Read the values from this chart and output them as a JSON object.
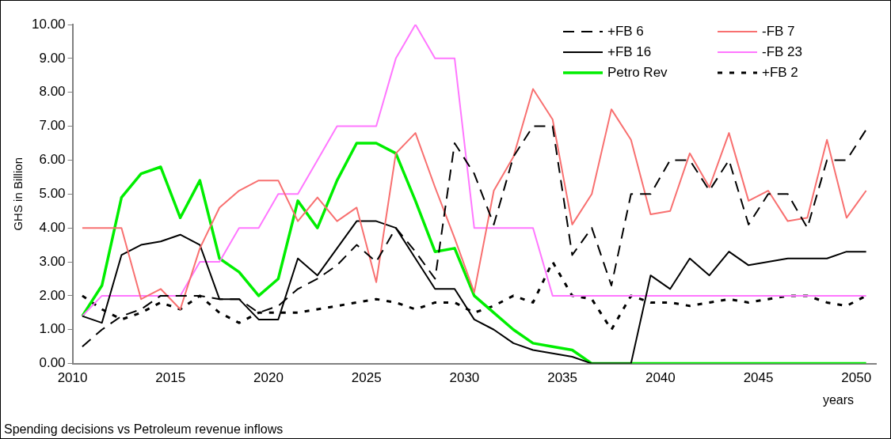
{
  "chart_data": {
    "type": "line",
    "xlabel": "years",
    "ylabel": "GHS in Billion",
    "annotations": [
      "Spending decisions vs Petroleum revenue inflows"
    ],
    "x": [
      2010.5,
      2011.5,
      2012.5,
      2013.5,
      2014.5,
      2015.5,
      2016.5,
      2017.5,
      2018.5,
      2019.5,
      2020.5,
      2021.5,
      2022.5,
      2023.5,
      2024.5,
      2025.5,
      2026.5,
      2027.5,
      2028.5,
      2029.5,
      2030.5,
      2031.5,
      2032.5,
      2033.5,
      2034.5,
      2035.5,
      2036.5,
      2037.5,
      2038.5,
      2039.5,
      2040.5,
      2041.5,
      2042.5,
      2043.5,
      2044.5,
      2045.5,
      2046.5,
      2047.5,
      2048.5,
      2049.5,
      2050.5
    ],
    "xlim": [
      2010,
      2051
    ],
    "xticks": [
      2010,
      2015,
      2020,
      2025,
      2030,
      2035,
      2040,
      2045,
      2050
    ],
    "ylim": [
      0,
      10
    ],
    "yticks": [
      {
        "value": 0,
        "label": "0.00"
      },
      {
        "value": 1,
        "label": "1.00"
      },
      {
        "value": 2,
        "label": "2.00"
      },
      {
        "value": 3,
        "label": "3.00"
      },
      {
        "value": 4,
        "label": "4.00"
      },
      {
        "value": 5,
        "label": "5.00"
      },
      {
        "value": 6,
        "label": "6.00"
      },
      {
        "value": 7,
        "label": "7.00"
      },
      {
        "value": 8,
        "label": "8.00"
      },
      {
        "value": 9,
        "label": "9.00"
      },
      {
        "value": 10,
        "label": "10.00"
      }
    ],
    "grid": false,
    "legend": "top right",
    "marker": "none",
    "series": [
      {
        "name": "+FB 6",
        "color": "#000000",
        "line_style": "dashed",
        "values": [
          0.5,
          1.0,
          1.4,
          1.6,
          2.0,
          2.0,
          2.0,
          1.9,
          1.9,
          1.5,
          1.7,
          2.2,
          2.5,
          2.9,
          3.5,
          3.0,
          4.0,
          3.3,
          2.5,
          6.5,
          5.6,
          4.1,
          6.1,
          7.0,
          7.0,
          3.2,
          4.0,
          2.3,
          5.0,
          5.0,
          6.0,
          6.0,
          5.1,
          6.0,
          4.1,
          5.0,
          5.0,
          4.0,
          6.0,
          6.0,
          6.9
        ]
      },
      {
        "name": "-FB 7",
        "color": "#f87070",
        "line_style": "solid",
        "values": [
          4.0,
          4.0,
          4.0,
          1.9,
          2.2,
          1.6,
          3.4,
          4.6,
          5.1,
          5.4,
          5.4,
          4.2,
          4.9,
          4.2,
          4.6,
          2.4,
          6.2,
          6.8,
          5.2,
          3.7,
          2.1,
          5.1,
          6.1,
          8.1,
          7.2,
          4.1,
          5.0,
          7.5,
          6.6,
          4.4,
          4.5,
          6.2,
          5.2,
          6.8,
          4.8,
          5.1,
          4.2,
          4.3,
          6.6,
          4.3,
          5.1
        ]
      },
      {
        "name": "+FB 16",
        "color": "#000000",
        "line_style": "solid",
        "values": [
          1.4,
          1.2,
          3.2,
          3.5,
          3.6,
          3.8,
          3.5,
          1.9,
          1.9,
          1.3,
          1.3,
          3.1,
          2.6,
          3.4,
          4.2,
          4.2,
          4.0,
          3.1,
          2.2,
          2.2,
          1.3,
          1.0,
          0.6,
          0.4,
          0.3,
          0.2,
          0,
          0,
          0,
          2.6,
          2.2,
          3.1,
          2.6,
          3.3,
          2.9,
          3.0,
          3.1,
          3.1,
          3.1,
          3.3,
          3.3
        ]
      },
      {
        "name": "-FB 23",
        "color": "#ff77ff",
        "line_style": "solid",
        "values": [
          1.4,
          2.0,
          2.0,
          2.0,
          2.0,
          2.0,
          3.0,
          3.0,
          4.0,
          4.0,
          5.0,
          5.0,
          6.0,
          7.0,
          7.0,
          7.0,
          9.0,
          10.0,
          9.0,
          9.0,
          4.0,
          4.0,
          4.0,
          4.0,
          2.0,
          2.0,
          2.0,
          2.0,
          2.0,
          2.0,
          2.0,
          2.0,
          2.0,
          2.0,
          2.0,
          2.0,
          2.0,
          2.0,
          2.0,
          2.0,
          2.0
        ]
      },
      {
        "name": "Petro Rev",
        "color": "#00ee00",
        "line_style": "solid",
        "values": [
          1.4,
          2.3,
          4.9,
          5.6,
          5.8,
          4.3,
          5.4,
          3.1,
          2.7,
          2.0,
          2.5,
          4.8,
          4.0,
          5.4,
          6.5,
          6.5,
          6.2,
          4.8,
          3.3,
          3.4,
          2.0,
          1.5,
          1.0,
          0.6,
          0.5,
          0.4,
          0,
          0,
          0,
          0,
          0,
          0,
          0,
          0,
          0,
          0,
          0,
          0,
          0,
          0,
          0
        ]
      },
      {
        "name": "+FB 2",
        "color": "#000000",
        "line_style": "dotted",
        "values": [
          2.0,
          1.6,
          1.3,
          1.5,
          1.8,
          1.6,
          2.0,
          1.5,
          1.2,
          1.5,
          1.5,
          1.5,
          1.6,
          1.7,
          1.8,
          1.9,
          1.8,
          1.6,
          1.8,
          1.8,
          1.5,
          1.7,
          2.0,
          1.8,
          3.0,
          2.0,
          1.9,
          1.0,
          2.0,
          1.8,
          1.8,
          1.7,
          1.8,
          1.9,
          1.8,
          1.9,
          2.0,
          2.0,
          1.8,
          1.7,
          2.0
        ]
      }
    ]
  }
}
